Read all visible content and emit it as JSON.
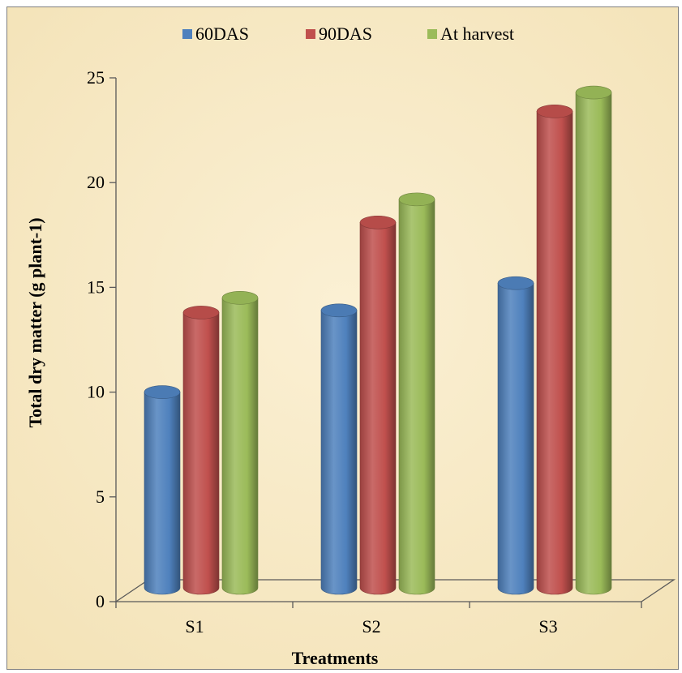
{
  "chart_data": {
    "type": "bar",
    "categories": [
      "S1",
      "S2",
      "S3"
    ],
    "series": [
      {
        "name": "60DAS",
        "values": [
          10.0,
          13.9,
          15.2
        ],
        "color": "#4f81bd"
      },
      {
        "name": "90DAS",
        "values": [
          13.8,
          18.1,
          23.4
        ],
        "color": "#c0504d"
      },
      {
        "name": "At harvest",
        "values": [
          14.5,
          19.2,
          24.3
        ],
        "color": "#9bbb59"
      }
    ],
    "title": "",
    "xlabel": "Treatments",
    "ylabel": "Total dry matter (g plant-1)",
    "ylim": [
      0,
      25
    ],
    "yticks": [
      "0",
      "5",
      "10",
      "15",
      "20",
      "25"
    ],
    "grid": false,
    "legend_position": "top",
    "style": "3d-cylinder",
    "background_color": "#f7e9c6"
  }
}
